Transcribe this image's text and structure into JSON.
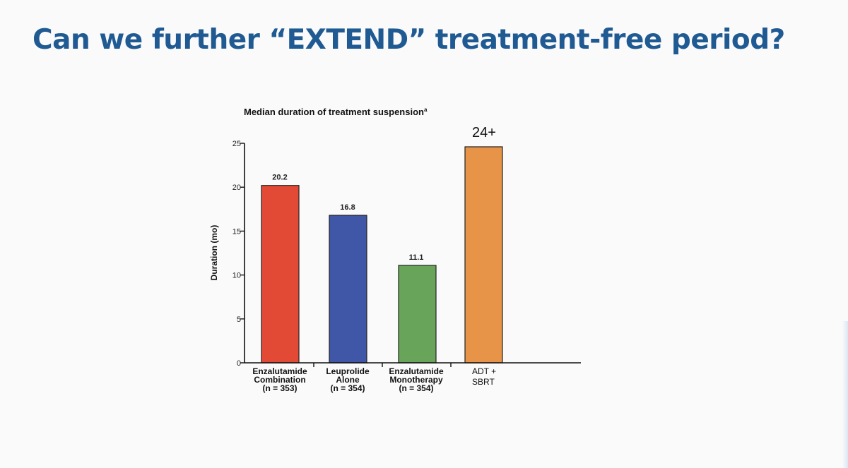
{
  "slide": {
    "title": "Can we further “EXTEND” treatment-free period?"
  },
  "chart_data": {
    "type": "bar",
    "title": "Median duration of treatment suspension",
    "title_superscript": "a",
    "ylabel": "Duration (mo)",
    "xlabel": "",
    "ylim": [
      0,
      25
    ],
    "yticks": [
      0,
      5,
      10,
      15,
      20,
      25
    ],
    "grid": false,
    "categories": [
      {
        "lines": [
          "Enzalutamide",
          "Combination",
          "(n = 353)"
        ],
        "value": 20.2,
        "label": "20.2",
        "color": "#e34a35"
      },
      {
        "lines": [
          "Leuprolide",
          "Alone",
          "(n = 354)"
        ],
        "value": 16.8,
        "label": "16.8",
        "color": "#4057a8"
      },
      {
        "lines": [
          "Enzalutamide",
          "Monotherapy",
          "(n = 354)"
        ],
        "value": 11.1,
        "label": "11.1",
        "color": "#68a55a"
      },
      {
        "lines": [
          "ADT +",
          "SBRT"
        ],
        "value": 24.6,
        "label": "24+",
        "color": "#e89448"
      }
    ]
  }
}
